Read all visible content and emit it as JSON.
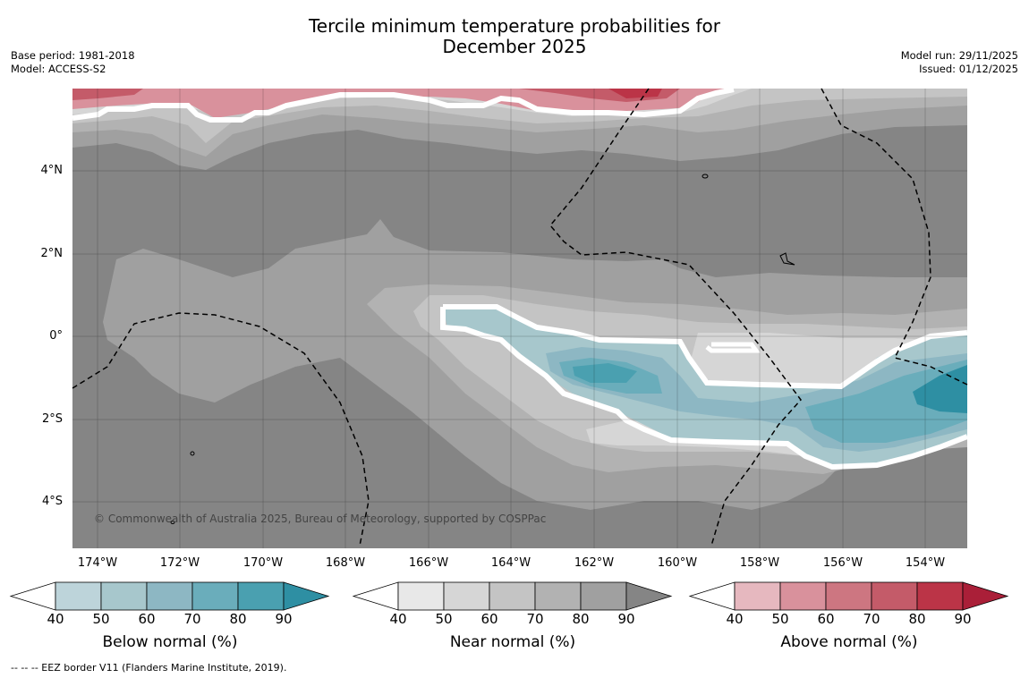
{
  "title": {
    "line1": "Tercile minimum temperature probabilities for",
    "line2": "December 2025"
  },
  "meta": {
    "base_period": "Base period: 1981-2018",
    "model": "Model: ACCESS-S2",
    "model_run": "Model run: 29/11/2025",
    "issued": "Issued: 01/12/2025"
  },
  "map": {
    "lat_labels": [
      "4°N",
      "2°N",
      "0°",
      "2°S",
      "4°S"
    ],
    "lon_labels": [
      "174°W",
      "172°W",
      "170°W",
      "168°W",
      "166°W",
      "164°W",
      "162°W",
      "160°W",
      "158°W",
      "156°W",
      "154°W"
    ],
    "copyright": "© Commonwealth of Australia 2025, Bureau of Meteorology, supported by COSPPac"
  },
  "colorbars": [
    {
      "title": "Below normal (%)",
      "ticks": [
        "40",
        "50",
        "60",
        "70",
        "80",
        "90"
      ],
      "colors": [
        "#ffffff",
        "#bdd4da",
        "#a7c7cc",
        "#8db7c3",
        "#6aadbb",
        "#4aa0b0",
        "#2e8fa3"
      ]
    },
    {
      "title": "Near normal (%)",
      "ticks": [
        "40",
        "50",
        "60",
        "70",
        "80",
        "90"
      ],
      "colors": [
        "#ffffff",
        "#e8e8e8",
        "#d6d6d6",
        "#c4c4c4",
        "#b2b2b2",
        "#a0a0a0",
        "#858585"
      ]
    },
    {
      "title": "Above normal (%)",
      "ticks": [
        "40",
        "50",
        "60",
        "70",
        "80",
        "90"
      ],
      "colors": [
        "#ffffff",
        "#e6b8bf",
        "#d9919c",
        "#cd7681",
        "#c45b69",
        "#bb3447",
        "#aa1f38"
      ]
    }
  ],
  "footnote": "--  --  -- EEZ border V11 (Flanders Marine Institute, 2019)."
}
